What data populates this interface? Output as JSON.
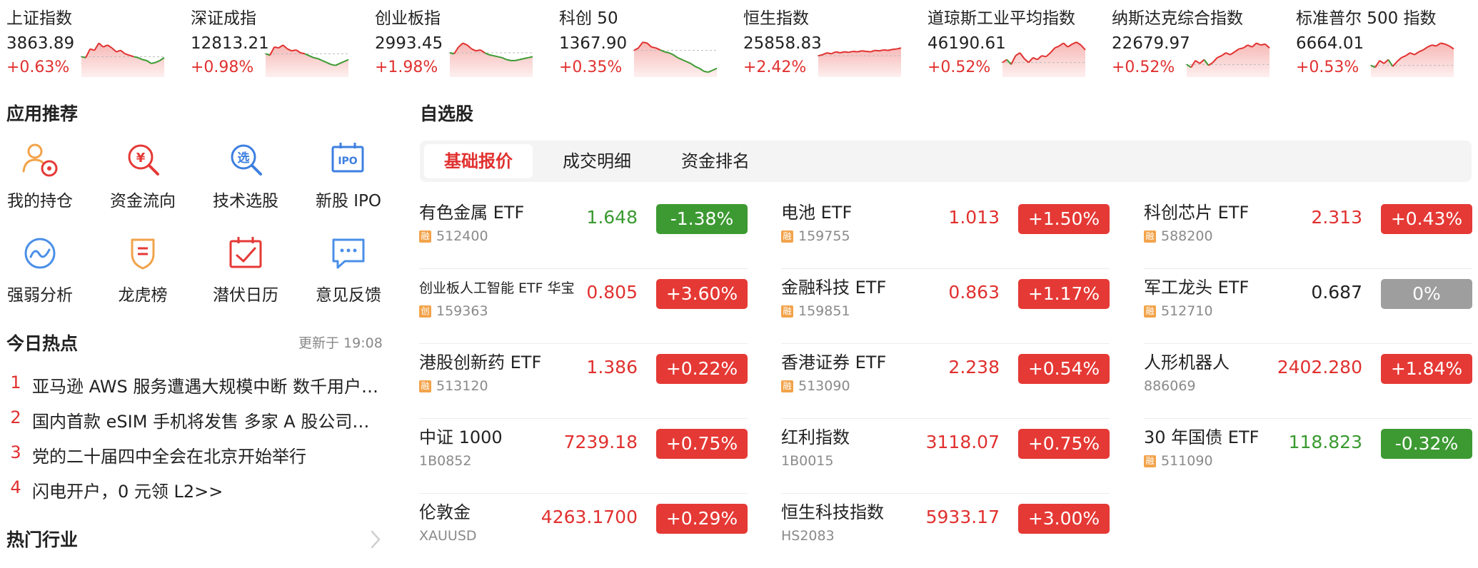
{
  "indices": [
    {
      "name": "上证指数",
      "value": "3863.89",
      "change": "+0.63%",
      "trend": [
        0.42,
        0.4,
        0.58,
        0.55,
        0.7,
        0.62,
        0.66,
        0.6,
        0.52,
        0.55,
        0.48,
        0.45,
        0.42,
        0.4,
        0.36,
        0.34,
        0.28,
        0.3,
        0.34,
        0.4
      ]
    },
    {
      "name": "深证成指",
      "value": "12813.21",
      "change": "+0.98%",
      "trend": [
        0.48,
        0.45,
        0.62,
        0.6,
        0.66,
        0.58,
        0.54,
        0.56,
        0.5,
        0.48,
        0.44,
        0.4,
        0.38,
        0.34,
        0.3,
        0.26,
        0.24,
        0.28,
        0.32,
        0.36
      ]
    },
    {
      "name": "创业板指",
      "value": "2993.45",
      "change": "+1.98%",
      "trend": [
        0.5,
        0.48,
        0.62,
        0.7,
        0.66,
        0.58,
        0.54,
        0.56,
        0.5,
        0.46,
        0.44,
        0.42,
        0.4,
        0.36,
        0.34,
        0.34,
        0.36,
        0.38,
        0.4,
        0.42
      ]
    },
    {
      "name": "科创 50",
      "value": "1367.90",
      "change": "+0.35%",
      "trend": [
        0.55,
        0.6,
        0.72,
        0.7,
        0.62,
        0.6,
        0.56,
        0.52,
        0.5,
        0.46,
        0.4,
        0.36,
        0.32,
        0.28,
        0.22,
        0.18,
        0.12,
        0.1,
        0.14,
        0.18
      ]
    },
    {
      "name": "恒生指数",
      "value": "25858.83",
      "change": "+2.42%",
      "trend": [
        0.44,
        0.46,
        0.5,
        0.48,
        0.52,
        0.5,
        0.52,
        0.51,
        0.53,
        0.52,
        0.54,
        0.53,
        0.52,
        0.55,
        0.54,
        0.56,
        0.55,
        0.57,
        0.58,
        0.6
      ]
    },
    {
      "name": "道琼斯工业平均指数",
      "value": "46190.61",
      "change": "+0.52%",
      "trend": [
        0.3,
        0.36,
        0.26,
        0.44,
        0.5,
        0.38,
        0.3,
        0.4,
        0.36,
        0.44,
        0.42,
        0.5,
        0.6,
        0.64,
        0.7,
        0.62,
        0.68,
        0.72,
        0.66,
        0.56
      ]
    },
    {
      "name": "纳斯达克综合指数",
      "value": "22679.97",
      "change": "+0.52%",
      "trend": [
        0.26,
        0.2,
        0.34,
        0.28,
        0.36,
        0.24,
        0.3,
        0.4,
        0.44,
        0.5,
        0.46,
        0.52,
        0.58,
        0.6,
        0.66,
        0.62,
        0.7,
        0.66,
        0.68,
        0.6
      ]
    },
    {
      "name": "标准普尔 500 指数",
      "value": "6664.01",
      "change": "+0.53%",
      "trend": [
        0.24,
        0.2,
        0.34,
        0.28,
        0.36,
        0.22,
        0.32,
        0.4,
        0.44,
        0.5,
        0.46,
        0.52,
        0.56,
        0.62,
        0.66,
        0.64,
        0.7,
        0.68,
        0.64,
        0.58
      ]
    }
  ],
  "apps": {
    "title": "应用推荐",
    "items": [
      {
        "label": "我的持仓",
        "icon": "person-holdings-icon"
      },
      {
        "label": "资金流向",
        "icon": "money-search-icon"
      },
      {
        "label": "技术选股",
        "icon": "select-stock-search-icon"
      },
      {
        "label": "新股 IPO",
        "icon": "ipo-icon",
        "glyph": "IPO"
      },
      {
        "label": "强弱分析",
        "icon": "wave-circle-icon"
      },
      {
        "label": "龙虎榜",
        "icon": "shield-badge-icon"
      },
      {
        "label": "潜伏日历",
        "icon": "calendar-check-icon"
      },
      {
        "label": "意见反馈",
        "icon": "chat-feedback-icon"
      }
    ],
    "glyphs": {
      "money": "¥",
      "select": "选"
    }
  },
  "hot": {
    "title": "今日热点",
    "updated": "更新于 19:08",
    "items": [
      {
        "rank": "1",
        "title": "亚马逊 AWS 服务遭遇大规模中断 数千用户受影响"
      },
      {
        "rank": "2",
        "title": "国内首款 eSIM 手机将发售 多家 A 股公司有望受益"
      },
      {
        "rank": "3",
        "title": "党的二十届四中全会在北京开始举行"
      },
      {
        "rank": "4",
        "title": "闪电开户，0 元领 L2>>"
      }
    ]
  },
  "industries": {
    "title": "热门行业"
  },
  "watchlist": {
    "title": "自选股",
    "tabs": [
      "基础报价",
      "成交明细",
      "资金排名"
    ],
    "columns": [
      [
        {
          "name": "有色金属 ETF",
          "badge": "融",
          "code": "512400",
          "price": "1.648",
          "change": "-1.38%",
          "dir": "down"
        },
        {
          "name": "创业板人工智能 ETF 华宝",
          "badge": "创",
          "code": "159363",
          "price": "0.805",
          "change": "+3.60%",
          "dir": "up",
          "small": true
        },
        {
          "name": "港股创新药 ETF",
          "badge": "融",
          "code": "513120",
          "price": "1.386",
          "change": "+0.22%",
          "dir": "up"
        },
        {
          "name": "中证 1000",
          "badge": "",
          "code": "1B0852",
          "price": "7239.18",
          "change": "+0.75%",
          "dir": "up"
        },
        {
          "name": "伦敦金",
          "badge": "",
          "code": "XAUUSD",
          "price": "4263.1700",
          "change": "+0.29%",
          "dir": "up"
        }
      ],
      [
        {
          "name": "电池 ETF",
          "badge": "融",
          "code": "159755",
          "price": "1.013",
          "change": "+1.50%",
          "dir": "up"
        },
        {
          "name": "金融科技 ETF",
          "badge": "融",
          "code": "159851",
          "price": "0.863",
          "change": "+1.17%",
          "dir": "up"
        },
        {
          "name": "香港证券 ETF",
          "badge": "融",
          "code": "513090",
          "price": "2.238",
          "change": "+0.54%",
          "dir": "up"
        },
        {
          "name": "红利指数",
          "badge": "",
          "code": "1B0015",
          "price": "3118.07",
          "change": "+0.75%",
          "dir": "up"
        },
        {
          "name": "恒生科技指数",
          "badge": "",
          "code": "HS2083",
          "price": "5933.17",
          "change": "+3.00%",
          "dir": "up"
        }
      ],
      [
        {
          "name": "科创芯片 ETF",
          "badge": "融",
          "code": "588200",
          "price": "2.313",
          "change": "+0.43%",
          "dir": "up"
        },
        {
          "name": "军工龙头 ETF",
          "badge": "融",
          "code": "512710",
          "price": "0.687",
          "change": "0%",
          "dir": "flat"
        },
        {
          "name": "人形机器人",
          "badge": "",
          "code": "886069",
          "price": "2402.280",
          "change": "+1.84%",
          "dir": "up"
        },
        {
          "name": "30 年国债 ETF",
          "badge": "融",
          "code": "511090",
          "price": "118.823",
          "change": "-0.32%",
          "dir": "down"
        }
      ]
    ]
  },
  "colors": {
    "up": "#e0312f",
    "down": "#3a9a30",
    "flat": "#9e9e9e",
    "icon_orange": "#f2a34a",
    "icon_red": "#e53935",
    "icon_blue": "#3d7fe0",
    "icon_blue2": "#4a8fe8"
  }
}
